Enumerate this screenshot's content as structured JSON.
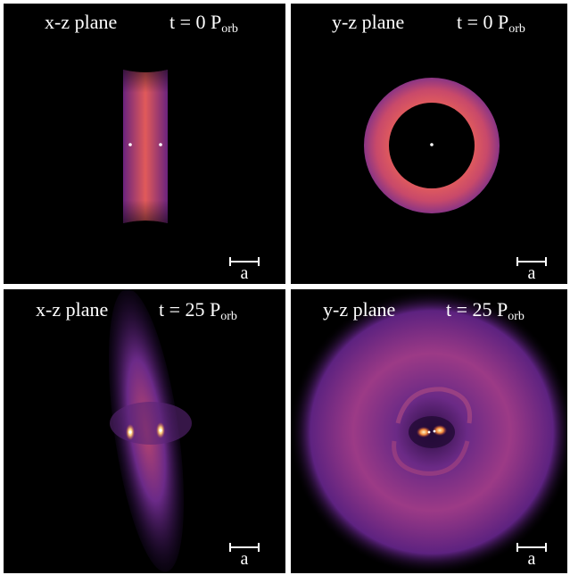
{
  "panels": [
    {
      "plane": "x-z plane",
      "time_prefix": "t = 0 P",
      "time_sub": "orb",
      "scale": "a"
    },
    {
      "plane": "y-z plane",
      "time_prefix": "t = 0 P",
      "time_sub": "orb",
      "scale": "a"
    },
    {
      "plane": "x-z plane",
      "time_prefix": "t = 25 P",
      "time_sub": "orb",
      "scale": "a"
    },
    {
      "plane": "y-z plane",
      "time_prefix": "t = 25 P",
      "time_sub": "orb",
      "scale": "a"
    }
  ],
  "colors": {
    "background": "#000000",
    "divider": "#ffffff",
    "disk_bright": "#e4575c",
    "disk_dim": "#7a2f8c",
    "halo": "#5a1f7a",
    "hot": "#ffd27a"
  }
}
